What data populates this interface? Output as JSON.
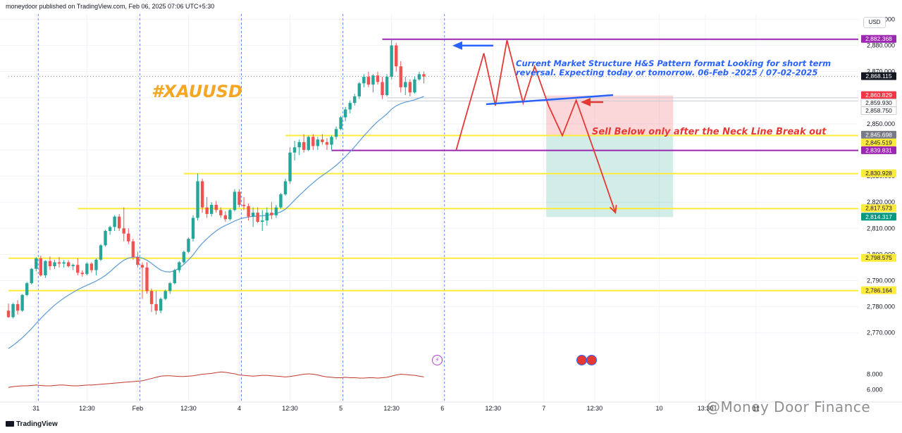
{
  "header": {
    "published": "moneydoor published on TradingView.com, Feb 06, 2025 07:06 UTC+5:30"
  },
  "footer": {
    "brand": "TradingView"
  },
  "watermark": "@Money Door Finance",
  "currency": "USD",
  "symbol_label": "#XAUUSD",
  "notes": {
    "structure": "Current Market Structure H&S Pattern format Looking for short term reversal. Expecting today or tomorrow. 06-Feb -2025 / 07-02-2025",
    "sell": "Sell Below only after the Neck Line Break out"
  },
  "colors": {
    "up": "#26a69a",
    "down": "#ef5350",
    "ma": "#5b9bd5",
    "support": "#ffeb3b",
    "resistance": "#9c27b0",
    "neck": "#2962ff",
    "stop_zone": "rgba(242,54,69,0.20)",
    "target_zone": "rgba(8,153,129,0.18)",
    "arrow": "#e53935",
    "volatility": "#c0392b"
  },
  "chart_data": {
    "type": "candlestick",
    "title": "#XAUUSD",
    "currency": "USD",
    "ylim": [
      2764,
      2892
    ],
    "y_ticks": [
      "2,770.000",
      "2,780.000",
      "2,790.000",
      "2,800.000",
      "2,810.000",
      "2,820.000",
      "2,830.000",
      "2,840.000",
      "2,850.000",
      "2,860.000",
      "2,870.000",
      "2,880.000",
      "2,890.000"
    ],
    "x_ticks": [
      {
        "label": "31",
        "i": 6
      },
      {
        "label": "12:30",
        "i": 17
      },
      {
        "label": "Feb",
        "i": 28
      },
      {
        "label": "12:30",
        "i": 39
      },
      {
        "label": "4",
        "i": 50
      },
      {
        "label": "12:30",
        "i": 61
      },
      {
        "label": "5",
        "i": 72
      },
      {
        "label": "12:30",
        "i": 83
      },
      {
        "label": "6",
        "i": 94
      },
      {
        "label": "12:30",
        "i": 105
      },
      {
        "label": "7",
        "i": 116
      },
      {
        "label": "12:30",
        "i": 127
      },
      {
        "label": "10",
        "i": 141
      },
      {
        "label": "13:30",
        "i": 151
      },
      {
        "label": "11",
        "i": 162
      }
    ],
    "session_breaks": [
      6,
      28,
      50,
      72,
      94
    ],
    "candles": [
      [
        2778.5,
        2781.2,
        2775.8,
        2776.0
      ],
      [
        2776.0,
        2781.5,
        2775.5,
        2781.0
      ],
      [
        2781.0,
        2782.5,
        2777.0,
        2778.5
      ],
      [
        2778.5,
        2784.8,
        2778.0,
        2784.5
      ],
      [
        2784.5,
        2789.5,
        2784.0,
        2789.0
      ],
      [
        2789.0,
        2794.8,
        2788.5,
        2794.5
      ],
      [
        2794.5,
        2799.0,
        2793.5,
        2798.5
      ],
      [
        2798.5,
        2799.5,
        2791.5,
        2792.0
      ],
      [
        2792.0,
        2797.8,
        2791.0,
        2797.5
      ],
      [
        2797.5,
        2799.2,
        2794.0,
        2795.5
      ],
      [
        2795.5,
        2798.0,
        2794.5,
        2797.0
      ],
      [
        2797.0,
        2799.0,
        2795.0,
        2796.5
      ],
      [
        2796.5,
        2797.8,
        2795.0,
        2797.0
      ],
      [
        2797.0,
        2797.8,
        2795.0,
        2795.5
      ],
      [
        2795.5,
        2796.5,
        2794.0,
        2796.0
      ],
      [
        2796.0,
        2798.5,
        2792.0,
        2793.0
      ],
      [
        2793.0,
        2794.0,
        2791.5,
        2792.5
      ],
      [
        2792.5,
        2797.0,
        2792.0,
        2796.5
      ],
      [
        2796.5,
        2797.0,
        2793.0,
        2794.0
      ],
      [
        2794.0,
        2798.5,
        2792.0,
        2798.0
      ],
      [
        2798.0,
        2804.0,
        2797.5,
        2803.5
      ],
      [
        2803.5,
        2809.5,
        2803.0,
        2809.0
      ],
      [
        2809.0,
        2811.0,
        2807.5,
        2810.5
      ],
      [
        2810.5,
        2815.0,
        2809.0,
        2814.5
      ],
      [
        2814.5,
        2815.5,
        2809.0,
        2810.0
      ],
      [
        2810.0,
        2818.0,
        2805.0,
        2808.0
      ],
      [
        2808.0,
        2810.0,
        2804.0,
        2805.0
      ],
      [
        2805.0,
        2806.0,
        2798.0,
        2799.0
      ],
      [
        2799.0,
        2801.0,
        2795.0,
        2796.0
      ],
      [
        2796.0,
        2797.0,
        2783.0,
        2795.0
      ],
      [
        2795.0,
        2797.0,
        2785.0,
        2786.0
      ],
      [
        2786.0,
        2787.0,
        2778.0,
        2781.0
      ],
      [
        2781.0,
        2786.0,
        2777.0,
        2778.5
      ],
      [
        2778.5,
        2783.5,
        2777.5,
        2783.0
      ],
      [
        2783.0,
        2786.5,
        2782.5,
        2786.0
      ],
      [
        2786.0,
        2789.5,
        2785.0,
        2789.0
      ],
      [
        2789.0,
        2794.5,
        2788.5,
        2794.0
      ],
      [
        2794.0,
        2797.5,
        2793.0,
        2797.0
      ],
      [
        2797.0,
        2801.5,
        2796.5,
        2801.0
      ],
      [
        2801.0,
        2806.5,
        2800.5,
        2806.0
      ],
      [
        2806.0,
        2815.0,
        2805.0,
        2814.0
      ],
      [
        2814.0,
        2831.0,
        2813.0,
        2828.0
      ],
      [
        2828.0,
        2829.0,
        2816.0,
        2818.0
      ],
      [
        2818.0,
        2822.0,
        2814.0,
        2815.5
      ],
      [
        2815.5,
        2820.0,
        2814.5,
        2819.0
      ],
      [
        2819.0,
        2820.5,
        2816.0,
        2817.0
      ],
      [
        2817.0,
        2818.0,
        2814.0,
        2815.0
      ],
      [
        2815.0,
        2816.5,
        2812.5,
        2813.5
      ],
      [
        2813.5,
        2817.5,
        2813.0,
        2817.0
      ],
      [
        2817.0,
        2825.0,
        2816.5,
        2824.0
      ],
      [
        2824.0,
        2825.0,
        2818.0,
        2819.0
      ],
      [
        2819.0,
        2822.0,
        2817.0,
        2818.5
      ],
      [
        2818.5,
        2819.5,
        2813.0,
        2814.5
      ],
      [
        2814.5,
        2818.0,
        2810.5,
        2816.0
      ],
      [
        2816.0,
        2818.0,
        2812.0,
        2812.5
      ],
      [
        2812.5,
        2817.0,
        2809.0,
        2813.0
      ],
      [
        2813.0,
        2818.0,
        2811.0,
        2816.0
      ],
      [
        2816.0,
        2820.0,
        2813.5,
        2815.0
      ],
      [
        2815.0,
        2819.0,
        2814.0,
        2818.0
      ],
      [
        2818.0,
        2823.5,
        2817.5,
        2823.0
      ],
      [
        2823.0,
        2829.0,
        2822.5,
        2828.0
      ],
      [
        2828.0,
        2841.0,
        2827.0,
        2839.0
      ],
      [
        2839.0,
        2843.5,
        2836.0,
        2841.0
      ],
      [
        2841.0,
        2844.0,
        2838.0,
        2843.0
      ],
      [
        2843.0,
        2846.0,
        2839.0,
        2840.0
      ],
      [
        2840.0,
        2845.5,
        2839.5,
        2845.0
      ],
      [
        2845.0,
        2846.0,
        2840.0,
        2841.5
      ],
      [
        2841.5,
        2845.0,
        2840.0,
        2844.0
      ],
      [
        2844.0,
        2846.0,
        2842.0,
        2843.0
      ],
      [
        2843.0,
        2844.5,
        2840.0,
        2842.0
      ],
      [
        2842.0,
        2845.5,
        2840.0,
        2845.0
      ],
      [
        2845.0,
        2849.0,
        2844.0,
        2848.0
      ],
      [
        2848.0,
        2853.0,
        2847.5,
        2852.5
      ],
      [
        2852.5,
        2856.5,
        2851.0,
        2855.5
      ],
      [
        2855.5,
        2859.0,
        2854.0,
        2858.0
      ],
      [
        2858.0,
        2861.5,
        2857.0,
        2860.5
      ],
      [
        2860.5,
        2866.0,
        2859.5,
        2865.5
      ],
      [
        2865.5,
        2869.0,
        2864.0,
        2868.0
      ],
      [
        2868.0,
        2870.0,
        2864.0,
        2865.0
      ],
      [
        2865.0,
        2869.0,
        2862.0,
        2868.5
      ],
      [
        2868.5,
        2870.0,
        2865.0,
        2866.0
      ],
      [
        2866.0,
        2868.0,
        2859.5,
        2861.0
      ],
      [
        2861.0,
        2869.0,
        2860.5,
        2868.0
      ],
      [
        2868.0,
        2882.3,
        2867.0,
        2880.0
      ],
      [
        2880.0,
        2881.0,
        2870.0,
        2872.0
      ],
      [
        2872.0,
        2874.0,
        2862.0,
        2864.0
      ],
      [
        2864.0,
        2868.0,
        2861.0,
        2866.0
      ],
      [
        2866.0,
        2867.0,
        2860.5,
        2862.0
      ],
      [
        2862.0,
        2868.0,
        2861.5,
        2867.0
      ],
      [
        2867.0,
        2870.0,
        2866.5,
        2869.0
      ],
      [
        2869.0,
        2870.0,
        2865.5,
        2868.1
      ]
    ],
    "moving_average": [
      2764.0,
      2765.2,
      2766.6,
      2768.1,
      2769.8,
      2771.6,
      2773.6,
      2775.5,
      2777.3,
      2779.0,
      2780.6,
      2782.0,
      2783.3,
      2784.4,
      2785.5,
      2786.5,
      2787.4,
      2788.2,
      2789.0,
      2789.8,
      2790.8,
      2792.0,
      2793.4,
      2795.0,
      2796.5,
      2797.8,
      2798.6,
      2799.0,
      2799.0,
      2798.6,
      2797.8,
      2796.6,
      2795.2,
      2794.0,
      2793.4,
      2793.3,
      2793.8,
      2794.8,
      2796.2,
      2797.9,
      2799.8,
      2802.2,
      2804.3,
      2806.0,
      2807.6,
      2809.0,
      2810.2,
      2811.1,
      2811.9,
      2812.8,
      2813.5,
      2814.0,
      2814.3,
      2814.6,
      2814.7,
      2814.8,
      2815.0,
      2815.3,
      2815.7,
      2816.3,
      2817.3,
      2819.0,
      2820.8,
      2822.6,
      2824.2,
      2825.9,
      2827.4,
      2828.9,
      2830.2,
      2831.4,
      2832.7,
      2834.1,
      2835.7,
      2837.4,
      2839.3,
      2841.2,
      2843.3,
      2845.4,
      2847.3,
      2849.2,
      2850.9,
      2852.3,
      2853.8,
      2855.6,
      2856.9,
      2857.7,
      2858.3,
      2858.7,
      2859.2,
      2859.8,
      2860.5
    ],
    "horizontal_levels": [
      {
        "price": 2882.368,
        "label": "2,882.368",
        "kind": "resistance",
        "from_i": 81
      },
      {
        "price": 2868.115,
        "label": "2,868.115",
        "kind": "last",
        "from_i": 0
      },
      {
        "price": 2860.829,
        "label": "2,860.829",
        "kind": "stop",
        "from_i": 82
      },
      {
        "price": 2859.93,
        "label": "2,859.930",
        "kind": "grey",
        "from_i": 82
      },
      {
        "price": 2858.75,
        "label": "2,858.750",
        "kind": "grey",
        "from_i": 82
      },
      {
        "price": 2845.698,
        "label": "2,845.698",
        "kind": "entry",
        "from_i": 60
      },
      {
        "price": 2845.519,
        "label": "2,845.519",
        "kind": "support",
        "from_i": 60
      },
      {
        "price": 2839.831,
        "label": "2,839.831",
        "kind": "resistance",
        "from_i": 70
      },
      {
        "price": 2830.928,
        "label": "2,830.928",
        "kind": "support",
        "from_i": 38
      },
      {
        "price": 2817.573,
        "label": "2,817.573",
        "kind": "support",
        "from_i": 15
      },
      {
        "price": 2814.317,
        "label": "2,814.317",
        "kind": "target",
        "from_i": 116
      },
      {
        "price": 2798.575,
        "label": "2,798.575",
        "kind": "support",
        "from_i": 0
      },
      {
        "price": 2786.164,
        "label": "2,786.164",
        "kind": "support",
        "from_i": 0
      }
    ],
    "position": {
      "entry": 2845.698,
      "stop": 2860.829,
      "target": 2814.317,
      "from_i": 116.5,
      "to_i": 144
    },
    "projection_path": [
      [
        97,
        2840
      ],
      [
        103,
        2877
      ],
      [
        105.5,
        2857
      ],
      [
        108,
        2882
      ],
      [
        111.5,
        2858
      ],
      [
        114,
        2872
      ],
      [
        117,
        2857
      ],
      [
        120,
        2845.5
      ],
      [
        123,
        2859
      ],
      [
        127.5,
        2836.5
      ],
      [
        131.5,
        2816
      ]
    ],
    "neckline": [
      [
        103.5,
        2857.5
      ],
      [
        131,
        2861
      ]
    ],
    "volatility": {
      "ylim": [
        4.5,
        9.5
      ],
      "y_ticks": [
        "6.000",
        "8.000"
      ],
      "values": [
        6.3,
        6.4,
        6.45,
        6.5,
        6.5,
        6.55,
        6.6,
        6.55,
        6.5,
        6.5,
        6.55,
        6.6,
        6.6,
        6.55,
        6.5,
        6.5,
        6.55,
        6.6,
        6.6,
        6.65,
        6.7,
        6.75,
        6.8,
        6.85,
        6.9,
        6.95,
        7.0,
        7.05,
        7.1,
        7.15,
        7.3,
        7.45,
        7.6,
        7.75,
        7.8,
        7.8,
        7.75,
        7.7,
        7.7,
        7.75,
        7.8,
        7.9,
        8.0,
        8.05,
        8.1,
        8.2,
        8.3,
        8.25,
        8.15,
        8.05,
        7.9,
        7.85,
        7.8,
        7.75,
        7.8,
        7.85,
        7.85,
        7.8,
        7.75,
        7.7,
        7.65,
        7.7,
        7.8,
        7.9,
        8.0,
        8.05,
        8.0,
        7.9,
        7.75,
        7.65,
        7.6,
        7.55,
        7.55,
        7.6,
        7.55,
        7.55,
        7.5,
        7.5,
        7.55,
        7.55,
        7.5,
        7.55,
        7.6,
        7.75,
        7.9,
        8.0,
        7.95,
        7.9,
        7.85,
        7.75,
        7.65
      ]
    }
  }
}
